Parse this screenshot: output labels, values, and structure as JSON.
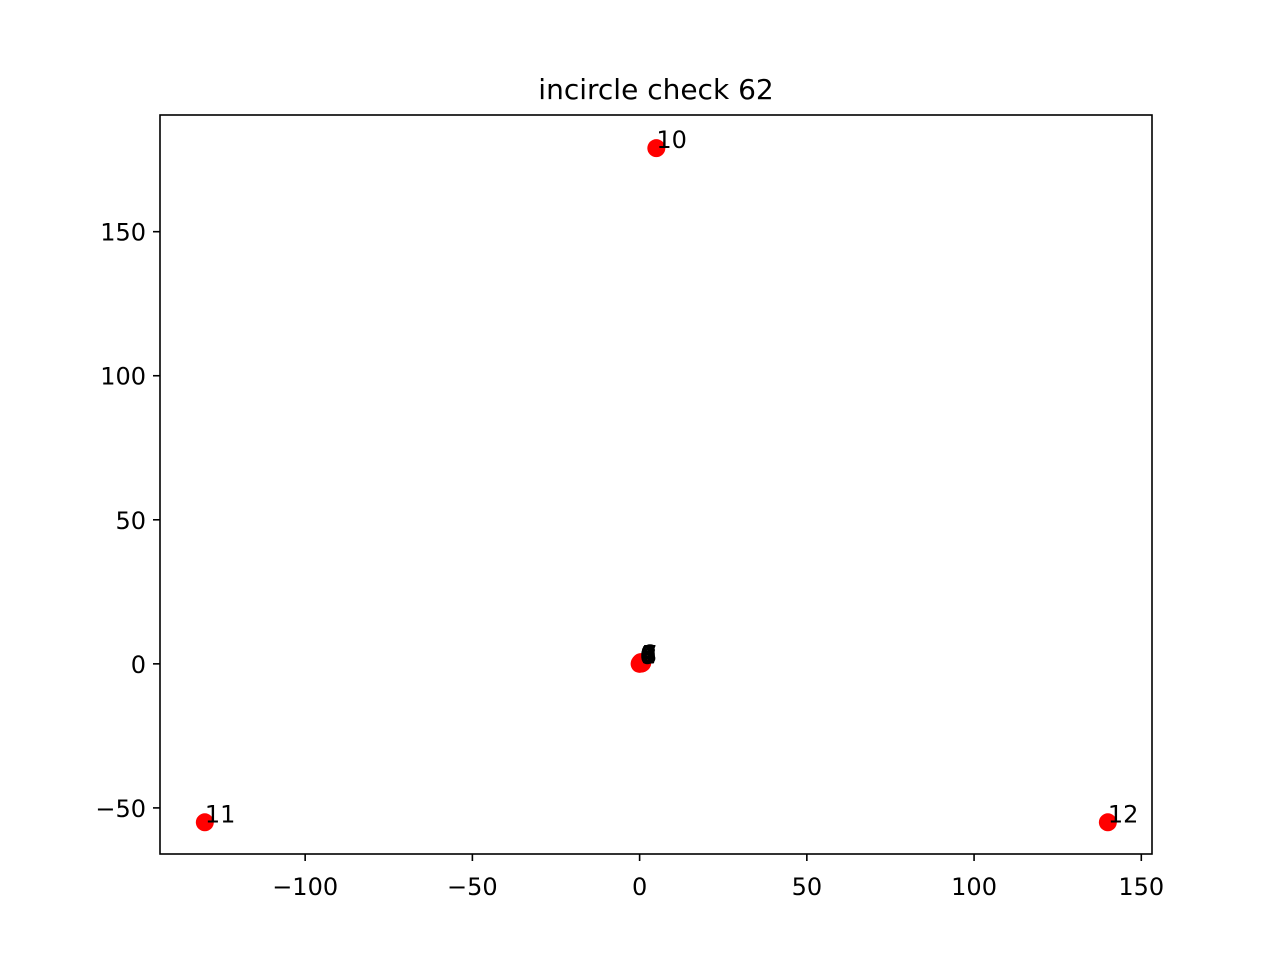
{
  "chart_data": {
    "type": "scatter",
    "title": "incircle check 62",
    "xlabel": "",
    "ylabel": "",
    "xlim": [
      -143.4,
      153.2
    ],
    "ylim": [
      -66.0,
      190.5
    ],
    "x_ticks": [
      -100,
      -50,
      0,
      50,
      100,
      150
    ],
    "x_tick_labels": [
      "−100",
      "−50",
      "0",
      "50",
      "100",
      "150"
    ],
    "y_ticks": [
      -50,
      0,
      50,
      100,
      150
    ],
    "y_tick_labels": [
      "−50",
      "0",
      "50",
      "100",
      "150"
    ],
    "grid": false,
    "marker_color": "#ff0000",
    "label_color": "#000000",
    "points": [
      {
        "label": "0",
        "x": 0.0,
        "y": 0.0
      },
      {
        "label": "1",
        "x": 0.3,
        "y": 0.1
      },
      {
        "label": "2",
        "x": 0.5,
        "y": 0.3
      },
      {
        "label": "3",
        "x": 0.7,
        "y": 0.2
      },
      {
        "label": "4",
        "x": 0.2,
        "y": 0.4
      },
      {
        "label": "5",
        "x": 0.6,
        "y": 0.5
      },
      {
        "label": "6",
        "x": 0.4,
        "y": 0.6
      },
      {
        "label": "7",
        "x": 0.8,
        "y": 0.4
      },
      {
        "label": "8",
        "x": 0.1,
        "y": 0.2
      },
      {
        "label": "9",
        "x": 0.5,
        "y": 0.1
      },
      {
        "label": "10",
        "x": 5.0,
        "y": 179.0
      },
      {
        "label": "11",
        "x": -130.0,
        "y": -55.0
      },
      {
        "label": "12",
        "x": 140.0,
        "y": -55.0
      }
    ]
  }
}
